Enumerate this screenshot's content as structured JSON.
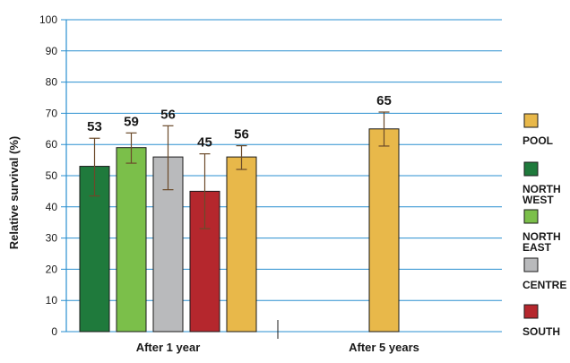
{
  "chart_data": {
    "type": "bar",
    "ylabel": "Relative survival (%)",
    "ylim": [
      0,
      100
    ],
    "yticks": [
      0,
      10,
      20,
      30,
      40,
      50,
      60,
      70,
      80,
      90,
      100
    ],
    "grid": true,
    "legend_position": "right",
    "groups": [
      {
        "label": "After 1 year",
        "bars": [
          {
            "series": "NORTH WEST",
            "value": 53,
            "label": "53",
            "err_low": 43.5,
            "err_high": 62
          },
          {
            "series": "NORTH EAST",
            "value": 59,
            "label": "59",
            "err_low": 54,
            "err_high": 63.7
          },
          {
            "series": "CENTRE",
            "value": 56,
            "label": "56",
            "err_low": 45.5,
            "err_high": 66
          },
          {
            "series": "SOUTH",
            "value": 45,
            "label": "45",
            "err_low": 33,
            "err_high": 57
          },
          {
            "series": "POOL",
            "value": 56,
            "label": "56",
            "err_low": 52,
            "err_high": 59.6
          }
        ]
      },
      {
        "label": "After 5 years",
        "bars": [
          {
            "series": "POOL",
            "value": 65,
            "label": "65",
            "err_low": 59.5,
            "err_high": 70.4
          }
        ]
      }
    ],
    "series": [
      {
        "name": "POOL",
        "lines": [
          "POOL"
        ],
        "color": "#e8b84a"
      },
      {
        "name": "NORTH WEST",
        "lines": [
          "NORTH",
          "WEST"
        ],
        "color": "#1f7a3c"
      },
      {
        "name": "NORTH EAST",
        "lines": [
          "NORTH",
          "EAST"
        ],
        "color": "#7bbf4a"
      },
      {
        "name": "CENTRE",
        "lines": [
          "CENTRE"
        ],
        "color": "#b9babc"
      },
      {
        "name": "SOUTH",
        "lines": [
          "SOUTH"
        ],
        "color": "#b5272d"
      }
    ],
    "colors": {
      "grid": "#2a8fd0",
      "axis": "#2a8fd0",
      "error_bar": "#6b4a2a",
      "bar_outline": "#1a1a1a"
    }
  }
}
